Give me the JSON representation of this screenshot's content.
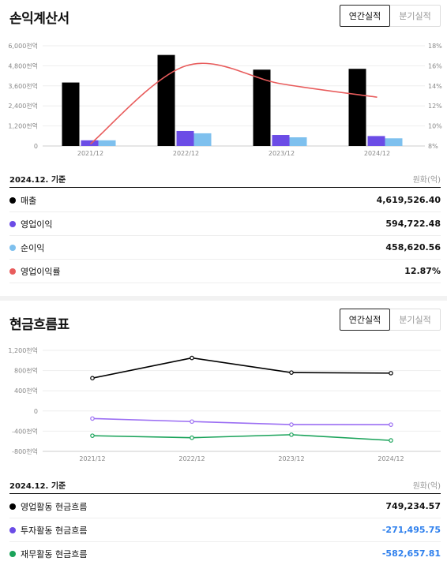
{
  "income": {
    "title": "손익계산서",
    "tab_annual": "연간실적",
    "tab_quarterly": "분기실적",
    "basis": "2024.12. 기준",
    "unit": "원화(억)",
    "rows": [
      {
        "label": "매출",
        "value": "4,619,526.40",
        "color": "#000000"
      },
      {
        "label": "영업이익",
        "value": "594,722.48",
        "color": "#6b4ce6"
      },
      {
        "label": "순이익",
        "value": "458,620.56",
        "color": "#7ec0ee"
      },
      {
        "label": "영업이익률",
        "value": "12.87%",
        "color": "#e85c5c"
      }
    ]
  },
  "cash": {
    "title": "현금흐름표",
    "tab_annual": "연간실적",
    "tab_quarterly": "분기실적",
    "basis": "2024.12. 기준",
    "unit": "원화(억)",
    "rows": [
      {
        "label": "영업활동 현금흐름",
        "value": "749,234.57",
        "color": "#000000",
        "negative": false
      },
      {
        "label": "투자활동 현금흐름",
        "value": "-271,495.75",
        "color": "#6b4ce6",
        "negative": true
      },
      {
        "label": "재무활동 현금흐름",
        "value": "-582,657.81",
        "color": "#1aa35a",
        "negative": true
      }
    ]
  },
  "chart_data": [
    {
      "type": "bar",
      "categories": [
        "2021/12",
        "2022/12",
        "2023/12",
        "2024/12"
      ],
      "ylim": [
        0,
        6000
      ],
      "y_ticks": [
        "0",
        "1,200천억",
        "2,400천억",
        "3,600천억",
        "4,800천억",
        "6,000천억"
      ],
      "y2lim": [
        8,
        18
      ],
      "y2_ticks": [
        "8%",
        "10%",
        "12%",
        "14%",
        "16%",
        "18%"
      ],
      "series": [
        {
          "name": "매출",
          "color": "#000000",
          "values": [
            3800,
            5450,
            4570,
            4620
          ]
        },
        {
          "name": "영업이익",
          "color": "#6b4ce6",
          "values": [
            340,
            900,
            660,
            595
          ]
        },
        {
          "name": "순이익",
          "color": "#7ec0ee",
          "values": [
            340,
            760,
            520,
            459
          ]
        }
      ],
      "line_series": {
        "name": "영업이익률",
        "color": "#e85c5c",
        "axis": "right",
        "values": [
          8.2,
          16.0,
          14.2,
          12.87
        ]
      },
      "grid": true
    },
    {
      "type": "line",
      "categories": [
        "2021/12",
        "2022/12",
        "2023/12",
        "2024/12"
      ],
      "ylim": [
        -800,
        1200
      ],
      "y_ticks": [
        "-800천억",
        "-400천억",
        "0",
        "400천억",
        "800천억",
        "1,200천억"
      ],
      "series": [
        {
          "name": "영업활동 현금흐름",
          "color": "#000000",
          "values": [
            650,
            1050,
            760,
            749
          ]
        },
        {
          "name": "투자활동 현금흐름",
          "color": "#9b6ef3",
          "values": [
            -150,
            -210,
            -270,
            -271
          ]
        },
        {
          "name": "재무활동 현금흐름",
          "color": "#1aa35a",
          "values": [
            -490,
            -530,
            -470,
            -583
          ]
        }
      ],
      "grid": true
    }
  ]
}
